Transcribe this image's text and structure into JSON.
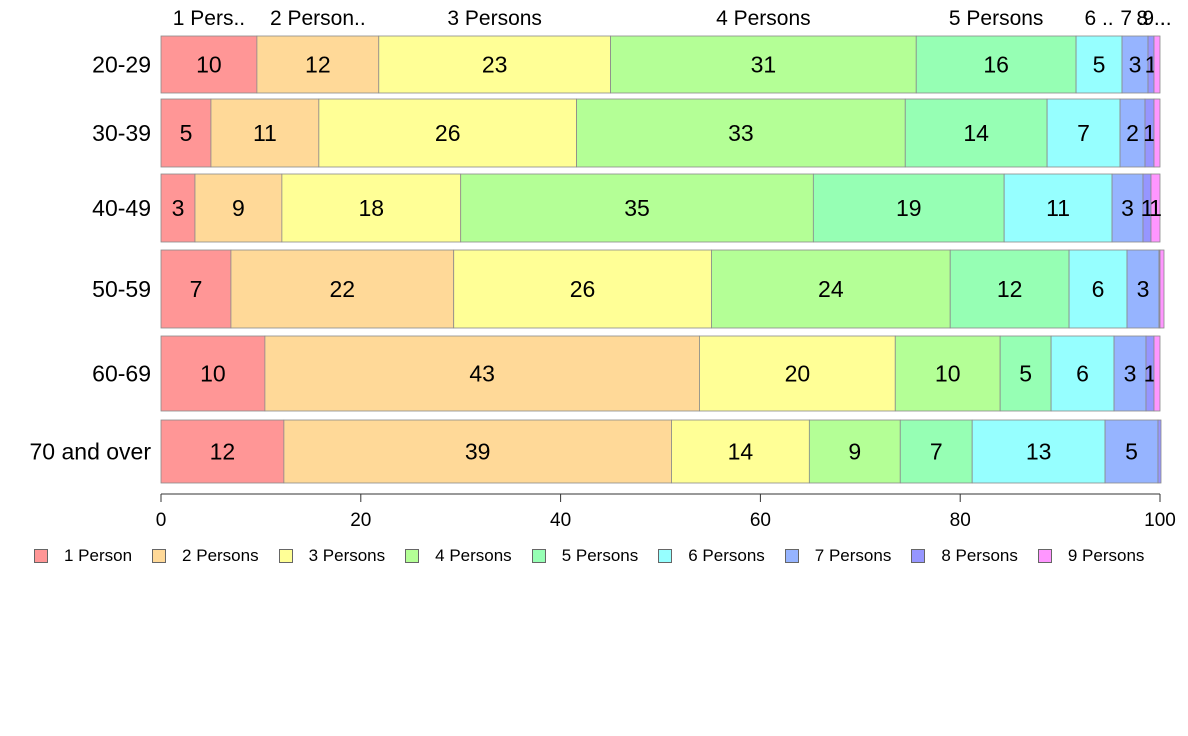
{
  "chart_data": {
    "type": "bar",
    "orientation": "horizontal",
    "stacked": true,
    "categories": [
      "20-29",
      "30-39",
      "40-49",
      "50-59",
      "60-69",
      "70 and over"
    ],
    "series": [
      {
        "name": "1 Person",
        "color": "#ff9696",
        "values": [
          9.6,
          5.0,
          3.4,
          7.0,
          10.4,
          12.3
        ]
      },
      {
        "name": "2 Persons",
        "color": "#ffd998",
        "values": [
          12.2,
          10.8,
          8.7,
          22.3,
          43.5,
          38.8
        ]
      },
      {
        "name": "3 Persons",
        "color": "#ffff96",
        "values": [
          23.2,
          25.8,
          17.9,
          25.8,
          19.6,
          13.8
        ]
      },
      {
        "name": "4 Persons",
        "color": "#b4ff96",
        "values": [
          30.6,
          32.9,
          35.3,
          23.9,
          10.5,
          9.1
        ]
      },
      {
        "name": "5 Persons",
        "color": "#96ffb4",
        "values": [
          16.0,
          14.2,
          19.1,
          11.9,
          5.1,
          7.2
        ]
      },
      {
        "name": "6 Persons",
        "color": "#96ffff",
        "values": [
          4.6,
          7.3,
          10.8,
          5.8,
          6.3,
          13.3
        ]
      },
      {
        "name": "7 Persons",
        "color": "#96b4ff",
        "values": [
          2.6,
          2.5,
          3.1,
          3.2,
          3.2,
          5.3
        ]
      },
      {
        "name": "8 Persons",
        "color": "#9696ff",
        "values": [
          0.6,
          0.9,
          0.8,
          0.1,
          0.8,
          0.3
        ]
      },
      {
        "name": "9 Persons",
        "color": "#ff96ff",
        "values": [
          0.6,
          0.6,
          0.9,
          0.4,
          0.6,
          0.0
        ]
      }
    ],
    "segment_labels": [
      [
        "10",
        "12",
        "23",
        "31",
        "16",
        "5",
        "3",
        "1",
        ""
      ],
      [
        "5",
        "11",
        "26",
        "33",
        "14",
        "7",
        "2",
        "1",
        ""
      ],
      [
        "3",
        "9",
        "18",
        "35",
        "19",
        "11",
        "3",
        "1",
        "1"
      ],
      [
        "7",
        "22",
        "26",
        "24",
        "12",
        "6",
        "3",
        "",
        ""
      ],
      [
        "10",
        "43",
        "20",
        "10",
        "5",
        "6",
        "3",
        "1",
        ""
      ],
      [
        "12",
        "39",
        "14",
        "9",
        "7",
        "13",
        "5",
        "",
        ""
      ]
    ],
    "top_labels": [
      "1 Pers..",
      "2 Person..",
      "3 Persons",
      "4 Persons",
      "5 Persons",
      "6 ..",
      "7 ..",
      "8 ..",
      "9 .."
    ],
    "xlim": [
      0,
      100
    ],
    "xticks": [
      0,
      20,
      40,
      60,
      80,
      100
    ],
    "grid": false,
    "legend_position": "bottom"
  }
}
